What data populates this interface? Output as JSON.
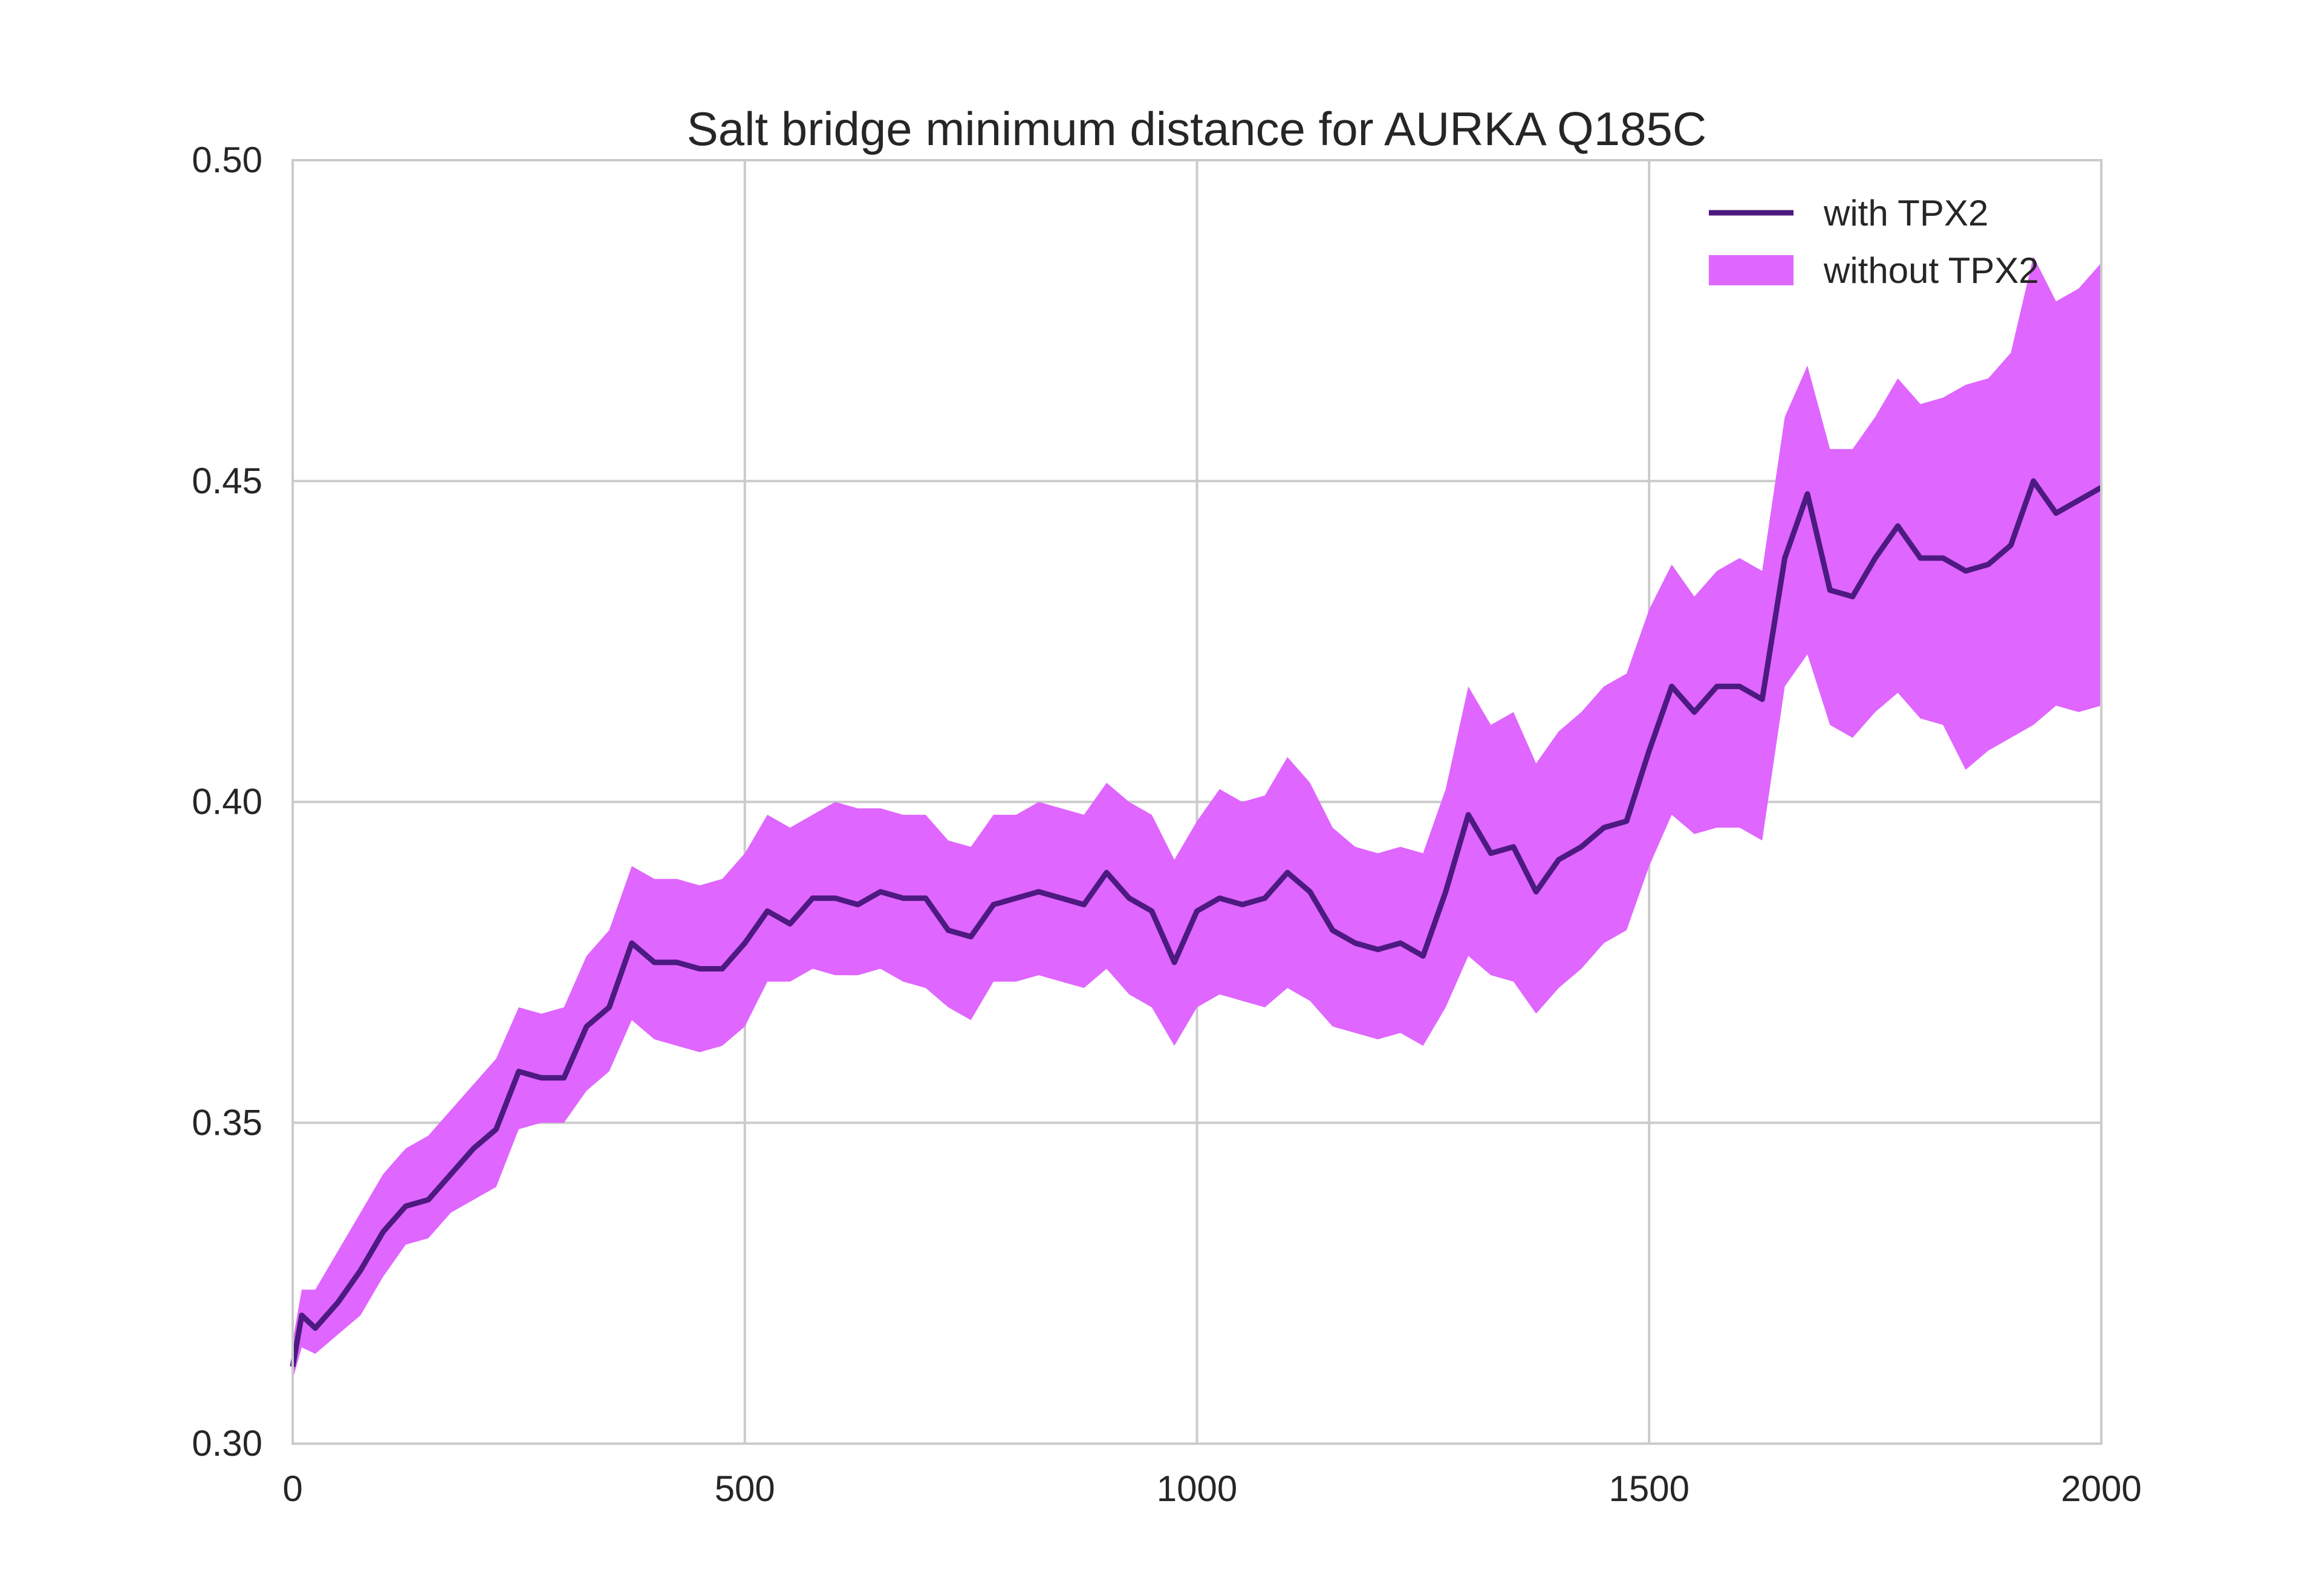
{
  "chart_data": {
    "type": "line",
    "title": "Salt bridge minimum distance for AURKA Q185C",
    "xlabel": "",
    "ylabel": "",
    "xlim": [
      0,
      2000
    ],
    "ylim": [
      0.3,
      0.5
    ],
    "x_ticks": [
      0,
      500,
      1000,
      1500,
      2000
    ],
    "x_tick_labels": [
      "0",
      "500",
      "1000",
      "1500",
      "2000"
    ],
    "y_ticks": [
      0.3,
      0.35,
      0.4,
      0.45,
      0.5
    ],
    "y_tick_labels": [
      "0.30",
      "0.35",
      "0.40",
      "0.45",
      "0.50"
    ],
    "grid": true,
    "legend_position": "top-right",
    "series": [
      {
        "name": "with TPX2",
        "kind": "line",
        "color": "#4c1a80",
        "x": [
          0,
          10,
          25,
          50,
          75,
          100,
          125,
          150,
          175,
          200,
          225,
          250,
          275,
          300,
          325,
          350,
          375,
          400,
          425,
          450,
          475,
          500,
          525,
          550,
          575,
          600,
          625,
          650,
          675,
          700,
          725,
          750,
          775,
          800,
          825,
          850,
          875,
          900,
          925,
          950,
          975,
          1000,
          1025,
          1050,
          1075,
          1100,
          1125,
          1150,
          1175,
          1200,
          1225,
          1250,
          1275,
          1300,
          1325,
          1350,
          1375,
          1400,
          1425,
          1450,
          1475,
          1500,
          1525,
          1550,
          1575,
          1600,
          1625,
          1650,
          1675,
          1700,
          1725,
          1750,
          1775,
          1800,
          1825,
          1850,
          1875,
          1900,
          1925,
          1950,
          1975,
          2000
        ],
        "y": [
          0.312,
          0.32,
          0.318,
          0.322,
          0.327,
          0.333,
          0.337,
          0.338,
          0.342,
          0.346,
          0.349,
          0.358,
          0.357,
          0.357,
          0.365,
          0.368,
          0.378,
          0.375,
          0.375,
          0.374,
          0.374,
          0.378,
          0.383,
          0.381,
          0.385,
          0.385,
          0.384,
          0.386,
          0.385,
          0.385,
          0.38,
          0.379,
          0.384,
          0.385,
          0.386,
          0.385,
          0.384,
          0.389,
          0.385,
          0.383,
          0.375,
          0.383,
          0.385,
          0.384,
          0.385,
          0.389,
          0.386,
          0.38,
          0.378,
          0.377,
          0.378,
          0.376,
          0.386,
          0.398,
          0.392,
          0.393,
          0.386,
          0.391,
          0.393,
          0.396,
          0.397,
          0.408,
          0.418,
          0.414,
          0.418,
          0.418,
          0.416,
          0.438,
          0.448,
          0.433,
          0.432,
          0.438,
          0.443,
          0.438,
          0.438,
          0.436,
          0.437,
          0.44,
          0.45,
          0.445,
          0.447,
          0.449
        ]
      },
      {
        "name": "without TPX2",
        "kind": "band",
        "color": "#df66ff",
        "x": [
          0,
          10,
          25,
          50,
          75,
          100,
          125,
          150,
          175,
          200,
          225,
          250,
          275,
          300,
          325,
          350,
          375,
          400,
          425,
          450,
          475,
          500,
          525,
          550,
          575,
          600,
          625,
          650,
          675,
          700,
          725,
          750,
          775,
          800,
          825,
          850,
          875,
          900,
          925,
          950,
          975,
          1000,
          1025,
          1050,
          1075,
          1100,
          1125,
          1150,
          1175,
          1200,
          1225,
          1250,
          1275,
          1300,
          1325,
          1350,
          1375,
          1400,
          1425,
          1450,
          1475,
          1500,
          1525,
          1550,
          1575,
          1600,
          1625,
          1650,
          1675,
          1700,
          1725,
          1750,
          1775,
          1800,
          1825,
          1850,
          1875,
          1900,
          1925,
          1950,
          1975,
          2000
        ],
        "lower": [
          0.31,
          0.315,
          0.314,
          0.317,
          0.32,
          0.326,
          0.331,
          0.332,
          0.336,
          0.338,
          0.34,
          0.349,
          0.35,
          0.35,
          0.355,
          0.358,
          0.366,
          0.363,
          0.362,
          0.361,
          0.362,
          0.365,
          0.372,
          0.372,
          0.374,
          0.373,
          0.373,
          0.374,
          0.372,
          0.371,
          0.368,
          0.366,
          0.372,
          0.372,
          0.373,
          0.372,
          0.371,
          0.374,
          0.37,
          0.368,
          0.362,
          0.368,
          0.37,
          0.369,
          0.368,
          0.371,
          0.369,
          0.365,
          0.364,
          0.363,
          0.364,
          0.362,
          0.368,
          0.376,
          0.373,
          0.372,
          0.367,
          0.371,
          0.374,
          0.378,
          0.38,
          0.39,
          0.398,
          0.395,
          0.396,
          0.396,
          0.394,
          0.418,
          0.423,
          0.412,
          0.41,
          0.414,
          0.417,
          0.413,
          0.412,
          0.405,
          0.408,
          0.41,
          0.412,
          0.415,
          0.414,
          0.415
        ],
        "upper": [
          0.316,
          0.324,
          0.324,
          0.33,
          0.336,
          0.342,
          0.346,
          0.348,
          0.352,
          0.356,
          0.36,
          0.368,
          0.367,
          0.368,
          0.376,
          0.38,
          0.39,
          0.388,
          0.388,
          0.387,
          0.388,
          0.392,
          0.398,
          0.396,
          0.398,
          0.4,
          0.399,
          0.399,
          0.398,
          0.398,
          0.394,
          0.393,
          0.398,
          0.398,
          0.4,
          0.399,
          0.398,
          0.403,
          0.4,
          0.398,
          0.391,
          0.397,
          0.402,
          0.4,
          0.401,
          0.407,
          0.403,
          0.396,
          0.393,
          0.392,
          0.393,
          0.392,
          0.402,
          0.418,
          0.412,
          0.414,
          0.406,
          0.411,
          0.414,
          0.418,
          0.42,
          0.43,
          0.437,
          0.432,
          0.436,
          0.438,
          0.436,
          0.46,
          0.468,
          0.455,
          0.455,
          0.46,
          0.466,
          0.462,
          0.463,
          0.465,
          0.466,
          0.47,
          0.485,
          0.478,
          0.48,
          0.484
        ]
      }
    ]
  }
}
